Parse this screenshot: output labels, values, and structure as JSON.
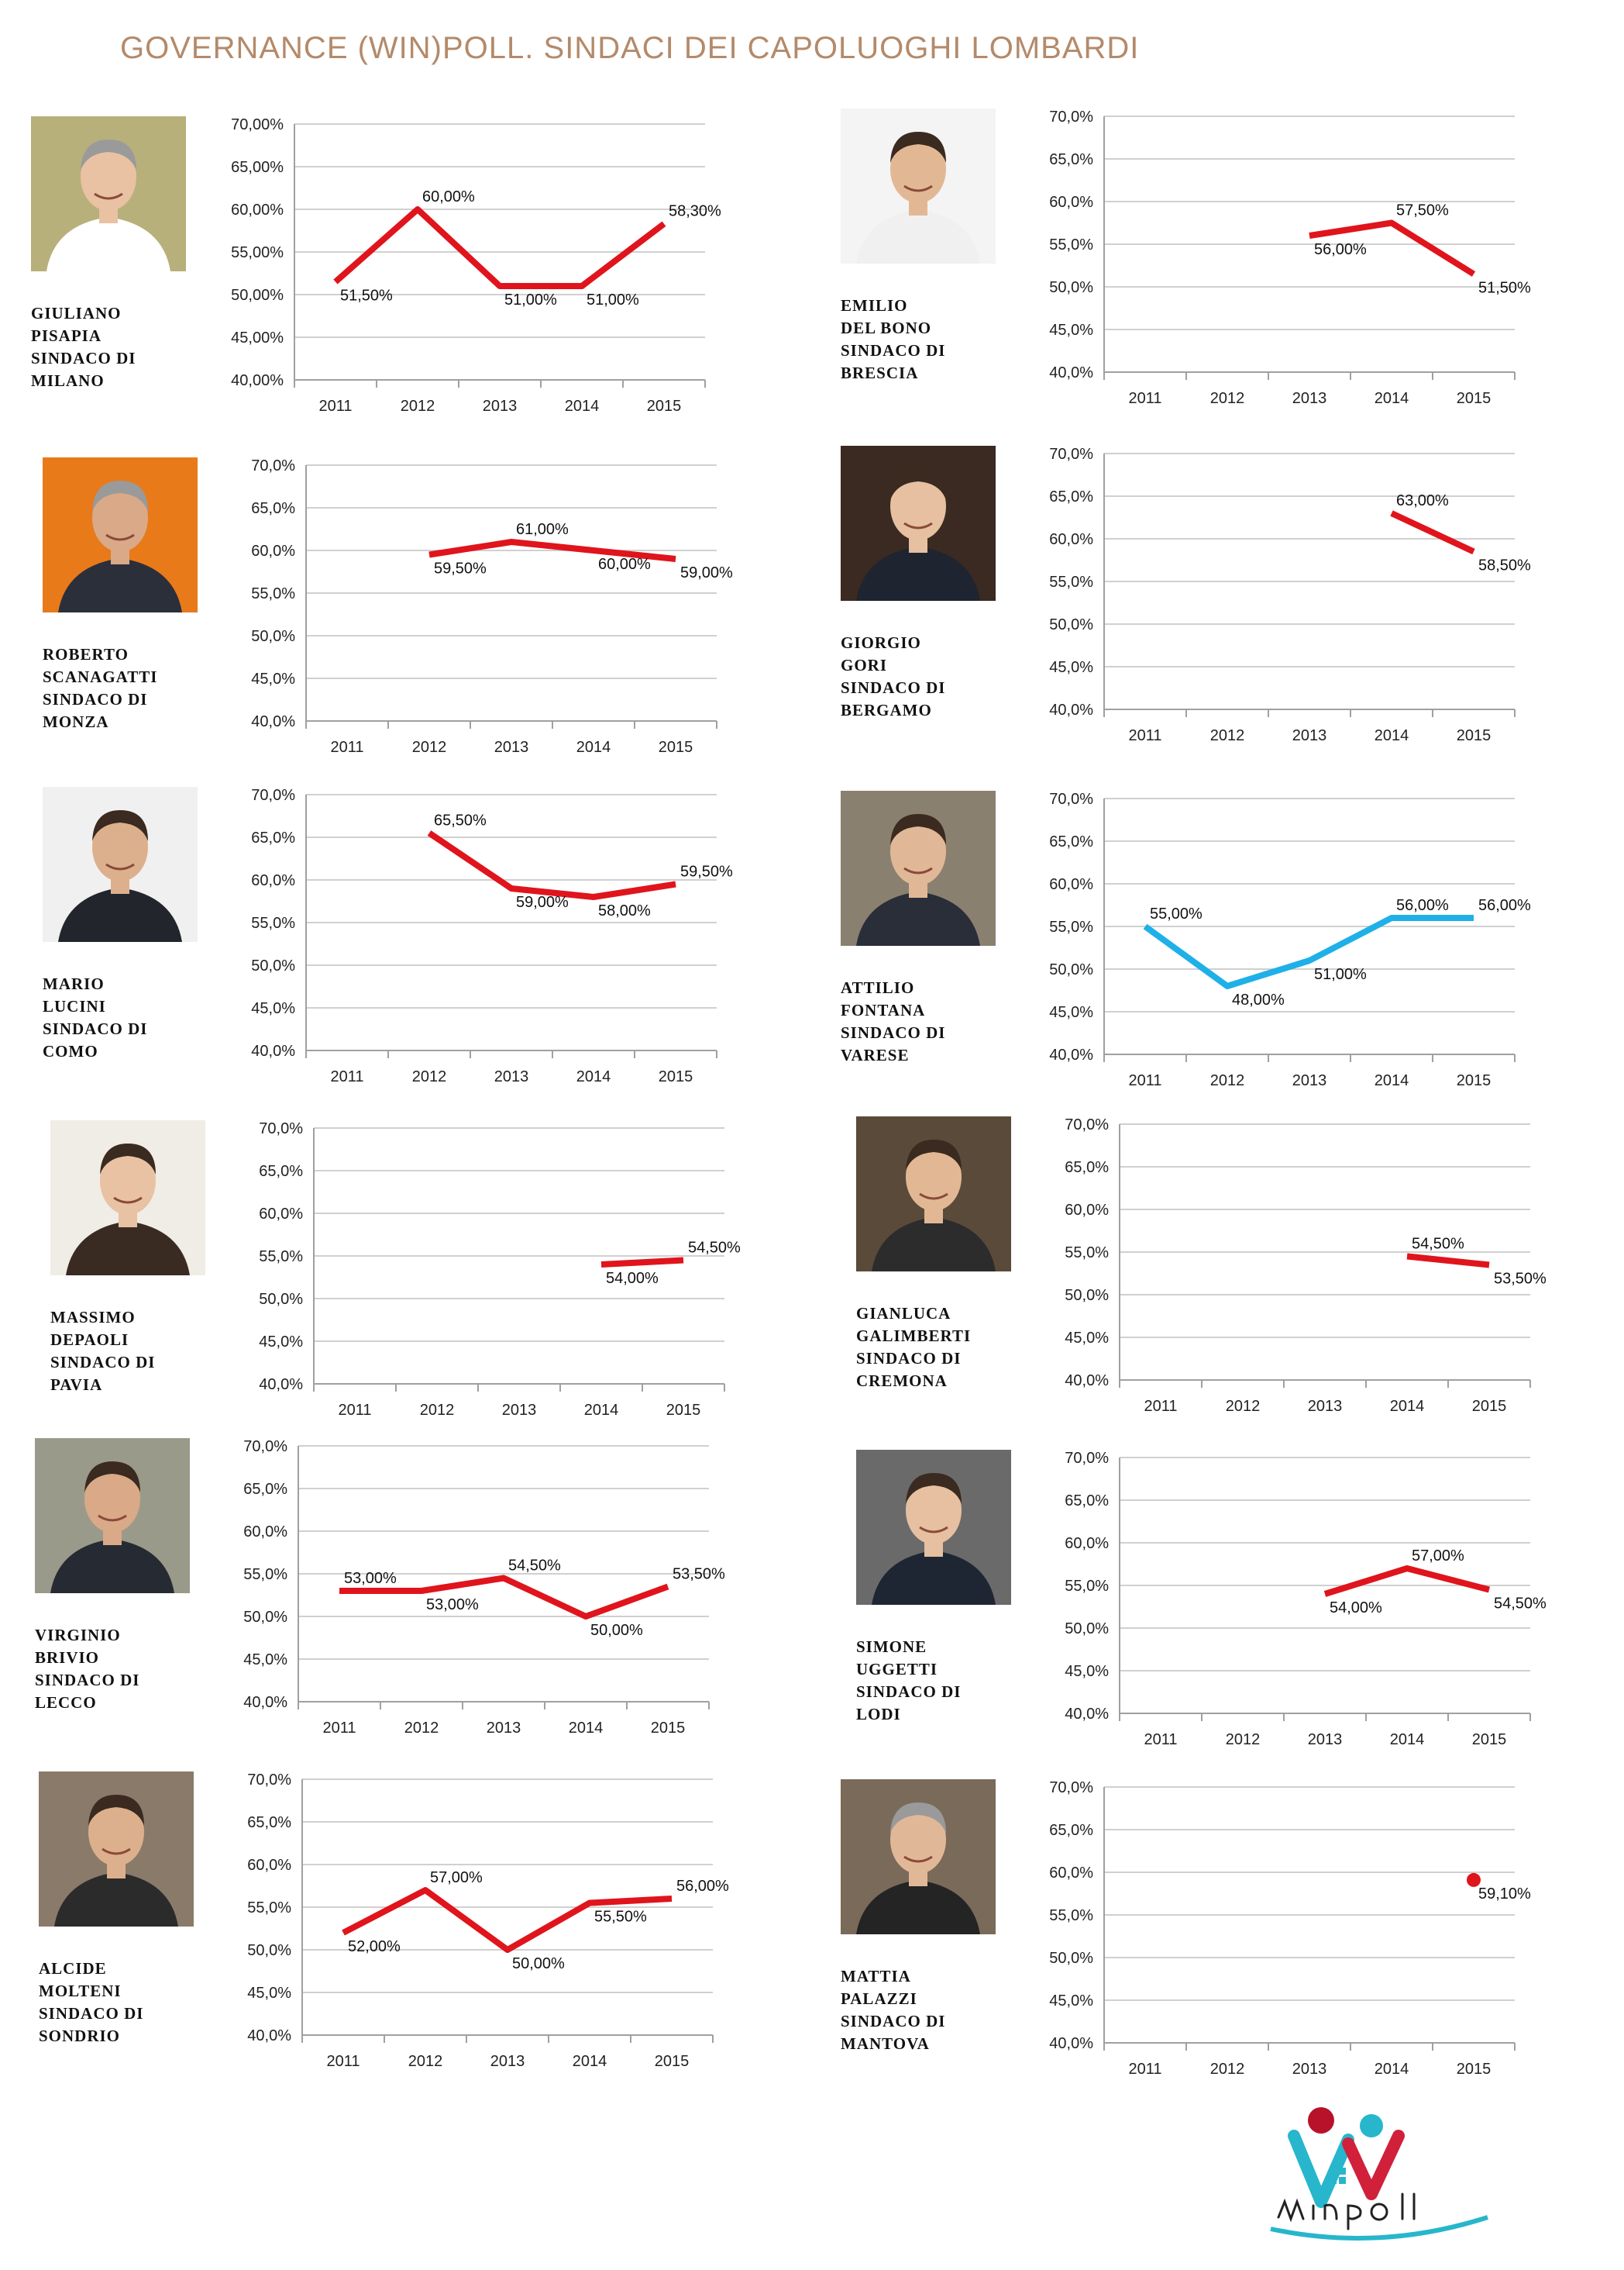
{
  "page": {
    "title": "GOVERNANCE (WIN)POLL. SINDACI DEI CAPOLUOGHI LOMBARDI",
    "logo_text": "Winpoll"
  },
  "colors": {
    "line": "#e0141c",
    "varese": "#1fb0e8",
    "grid": "#d0d0d0",
    "axis": "#a0a0a0"
  },
  "panels": [
    {
      "caption": [
        "GIULIANO",
        "PISAPIA",
        "SINDACO DI",
        "MILANO"
      ]
    },
    {
      "caption": [
        "EMILIO",
        "DEL BONO",
        "SINDACO DI",
        "BRESCIA"
      ]
    },
    {
      "caption": [
        "ROBERTO",
        "SCANAGATTI",
        "SINDACO DI",
        "MONZA"
      ]
    },
    {
      "caption": [
        "GIORGIO",
        "GORI",
        "SINDACO DI",
        "BERGAMO"
      ]
    },
    {
      "caption": [
        "MARIO",
        "LUCINI",
        "SINDACO DI",
        "COMO"
      ]
    },
    {
      "caption": [
        "ATTILIO",
        "FONTANA",
        "SINDACO DI",
        "VARESE"
      ]
    },
    {
      "caption": [
        "MASSIMO",
        "DEPAOLI",
        "SINDACO DI",
        "PAVIA"
      ]
    },
    {
      "caption": [
        "GIANLUCA",
        "GALIMBERTI",
        "SINDACO DI",
        "CREMONA"
      ]
    },
    {
      "caption": [
        "VIRGINIO",
        "BRIVIO",
        "SINDACO DI",
        "LECCO"
      ]
    },
    {
      "caption": [
        "SIMONE",
        "UGGETTI",
        "SINDACO DI",
        "LODI"
      ]
    },
    {
      "caption": [
        "ALCIDE",
        "MOLTENI",
        "SINDACO DI",
        "SONDRIO"
      ]
    },
    {
      "caption": [
        "MATTIA",
        "PALAZZI",
        "SINDACO DI",
        "MANTOVA"
      ]
    }
  ],
  "chart_data": [
    {
      "type": "line",
      "categories": [
        "2011",
        "2012",
        "2013",
        "2014",
        "2015"
      ],
      "ylim": [
        40,
        70
      ],
      "yticks": [
        "40,00%",
        "45,00%",
        "50,00%",
        "55,00%",
        "60,00%",
        "65,00%",
        "70,00%"
      ],
      "series": [
        {
          "values": [
            51.5,
            60,
            51,
            51,
            58.3
          ],
          "labels": [
            "51,50%",
            "60,00%",
            "51,00%",
            "51,00%",
            "58,30%"
          ]
        }
      ]
    },
    {
      "type": "line",
      "categories": [
        "2011",
        "2012",
        "2013",
        "2014",
        "2015"
      ],
      "ylim": [
        40,
        70
      ],
      "yticks": [
        "40,0%",
        "45,0%",
        "50,0%",
        "55,0%",
        "60,0%",
        "65,0%",
        "70,0%"
      ],
      "series": [
        {
          "values": [
            null,
            null,
            56,
            57.5,
            51.5
          ],
          "labels": [
            "",
            "",
            "56,00%",
            "57,50%",
            "51,50%"
          ]
        }
      ]
    },
    {
      "type": "line",
      "categories": [
        "2011",
        "2012",
        "2013",
        "2014",
        "2015"
      ],
      "ylim": [
        40,
        70
      ],
      "yticks": [
        "40,0%",
        "45,0%",
        "50,0%",
        "55,0%",
        "60,0%",
        "65,0%",
        "70,0%"
      ],
      "series": [
        {
          "values": [
            null,
            59.5,
            61,
            60,
            59
          ],
          "labels": [
            "",
            "59,50%",
            "61,00%",
            "60,00%",
            "59,00%"
          ]
        }
      ]
    },
    {
      "type": "line",
      "categories": [
        "2011",
        "2012",
        "2013",
        "2014",
        "2015"
      ],
      "ylim": [
        40,
        70
      ],
      "yticks": [
        "40,0%",
        "45,0%",
        "50,0%",
        "55,0%",
        "60,0%",
        "65,0%",
        "70,0%"
      ],
      "series": [
        {
          "values": [
            null,
            null,
            null,
            63,
            58.5
          ],
          "labels": [
            "",
            "",
            "",
            "63,00%",
            "58,50%"
          ]
        }
      ]
    },
    {
      "type": "line",
      "categories": [
        "2011",
        "2012",
        "2013",
        "2014",
        "2015"
      ],
      "ylim": [
        40,
        70
      ],
      "yticks": [
        "40,0%",
        "45,0%",
        "50,0%",
        "55,0%",
        "60,0%",
        "65,0%",
        "70,0%"
      ],
      "series": [
        {
          "values": [
            null,
            65.5,
            59,
            58,
            59.5
          ],
          "labels": [
            "",
            "65,50%",
            "59,00%",
            "58,00%",
            "59,50%"
          ]
        }
      ]
    },
    {
      "type": "line",
      "categories": [
        "2011",
        "2012",
        "2013",
        "2014",
        "2015"
      ],
      "ylim": [
        40,
        70
      ],
      "yticks": [
        "40,0%",
        "45,0%",
        "50,0%",
        "55,0%",
        "60,0%",
        "65,0%",
        "70,0%"
      ],
      "series": [
        {
          "values": [
            55,
            48,
            51,
            56,
            56
          ],
          "labels": [
            "55,00%",
            "48,00%",
            "51,00%",
            "56,00%",
            "56,00%"
          ],
          "color": "#1fb0e8"
        }
      ]
    },
    {
      "type": "line",
      "categories": [
        "2011",
        "2012",
        "2013",
        "2014",
        "2015"
      ],
      "ylim": [
        40,
        70
      ],
      "yticks": [
        "40,0%",
        "45,0%",
        "50,0%",
        "55,0%",
        "60,0%",
        "65,0%",
        "70,0%"
      ],
      "series": [
        {
          "values": [
            null,
            null,
            null,
            54,
            54.5
          ],
          "labels": [
            "",
            "",
            "",
            "54,00%",
            "54,50%"
          ]
        }
      ]
    },
    {
      "type": "line",
      "categories": [
        "2011",
        "2012",
        "2013",
        "2014",
        "2015"
      ],
      "ylim": [
        40,
        70
      ],
      "yticks": [
        "40,0%",
        "45,0%",
        "50,0%",
        "55,0%",
        "60,0%",
        "65,0%",
        "70,0%"
      ],
      "series": [
        {
          "values": [
            null,
            null,
            null,
            54.5,
            53.5
          ],
          "labels": [
            "",
            "",
            "",
            "54,50%",
            "53,50%"
          ]
        }
      ]
    },
    {
      "type": "line",
      "categories": [
        "2011",
        "2012",
        "2013",
        "2014",
        "2015"
      ],
      "ylim": [
        40,
        70
      ],
      "yticks": [
        "40,0%",
        "45,0%",
        "50,0%",
        "55,0%",
        "60,0%",
        "65,0%",
        "70,0%"
      ],
      "series": [
        {
          "values": [
            53,
            53,
            54.5,
            50,
            53.5
          ],
          "labels": [
            "53,00%",
            "53,00%",
            "54,50%",
            "50,00%",
            "53,50%"
          ]
        }
      ]
    },
    {
      "type": "line",
      "categories": [
        "2011",
        "2012",
        "2013",
        "2014",
        "2015"
      ],
      "ylim": [
        40,
        70
      ],
      "yticks": [
        "40,0%",
        "45,0%",
        "50,0%",
        "55,0%",
        "60,0%",
        "65,0%",
        "70,0%"
      ],
      "series": [
        {
          "values": [
            null,
            null,
            54,
            57,
            54.5
          ],
          "labels": [
            "",
            "",
            "54,00%",
            "57,00%",
            "54,50%"
          ]
        }
      ]
    },
    {
      "type": "line",
      "categories": [
        "2011",
        "2012",
        "2013",
        "2014",
        "2015"
      ],
      "ylim": [
        40,
        70
      ],
      "yticks": [
        "40,0%",
        "45,0%",
        "50,0%",
        "55,0%",
        "60,0%",
        "65,0%",
        "70,0%"
      ],
      "series": [
        {
          "values": [
            52,
            57,
            50,
            55.5,
            56
          ],
          "labels": [
            "52,00%",
            "57,00%",
            "50,00%",
            "55,50%",
            "56,00%"
          ]
        }
      ]
    },
    {
      "type": "scatter",
      "categories": [
        "2011",
        "2012",
        "2013",
        "2014",
        "2015"
      ],
      "ylim": [
        40,
        70
      ],
      "yticks": [
        "40,0%",
        "45,0%",
        "50,0%",
        "55,0%",
        "60,0%",
        "65,0%",
        "70,0%"
      ],
      "series": [
        {
          "values": [
            null,
            null,
            null,
            null,
            59.1
          ],
          "labels": [
            "",
            "",
            "",
            "",
            "59,10%"
          ]
        }
      ]
    }
  ]
}
